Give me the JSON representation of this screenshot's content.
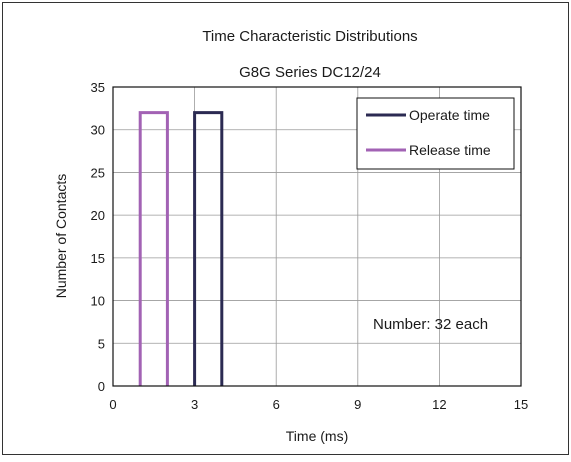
{
  "chart_data": {
    "type": "bar",
    "title": "Time Characteristic Distributions",
    "subtitle": "G8G Series DC12/24",
    "xlabel": "Time (ms)",
    "ylabel": "Number of Contacts",
    "xlim": [
      0,
      15
    ],
    "ylim": [
      0,
      35
    ],
    "x_ticks": [
      "0",
      "3",
      "6",
      "9",
      "12",
      "15"
    ],
    "y_ticks": [
      "0",
      "5",
      "10",
      "15",
      "20",
      "25",
      "30",
      "35"
    ],
    "grid": true,
    "legend_position": "top-right",
    "annotation": "Number: 32 each",
    "series": [
      {
        "name": "Operate time",
        "color": "#2b2a52",
        "bars": [
          {
            "x_start": 3,
            "x_end": 4,
            "value": 32
          }
        ]
      },
      {
        "name": "Release time",
        "color": "#a262b4",
        "bars": [
          {
            "x_start": 1,
            "x_end": 2,
            "value": 32
          }
        ]
      }
    ]
  }
}
